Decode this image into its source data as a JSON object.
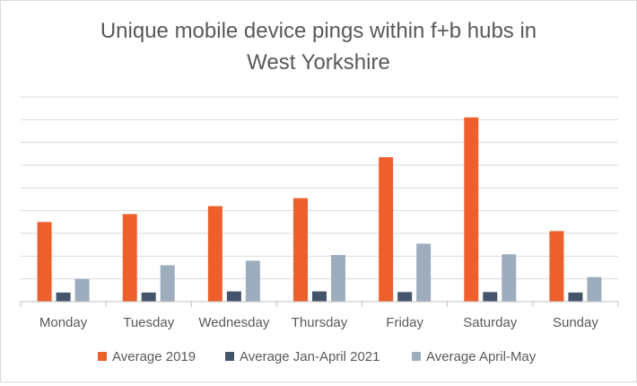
{
  "chart_data": {
    "type": "bar",
    "title_lines": [
      "Unique mobile device pings within f+b hubs in",
      "West Yorkshire"
    ],
    "xlabel": "",
    "ylabel": "",
    "y_tick_labels_shown": false,
    "ylim": [
      0,
      9
    ],
    "grid": true,
    "legend_position": "bottom",
    "categories": [
      "Monday",
      "Tuesday",
      "Wednesday",
      "Thursday",
      "Friday",
      "Saturday",
      "Sunday"
    ],
    "series": [
      {
        "name": "Average 2019",
        "color": "#ED5F2B",
        "values": [
          3.5,
          3.85,
          4.2,
          4.55,
          6.35,
          8.1,
          3.1
        ]
      },
      {
        "name": "Average Jan-April 2021",
        "color": "#44546A",
        "values": [
          0.4,
          0.4,
          0.45,
          0.45,
          0.42,
          0.42,
          0.4
        ]
      },
      {
        "name": "Average April-May",
        "color": "#9EADBE",
        "values": [
          1.0,
          1.6,
          1.8,
          2.05,
          2.55,
          2.08,
          1.08
        ]
      }
    ]
  }
}
